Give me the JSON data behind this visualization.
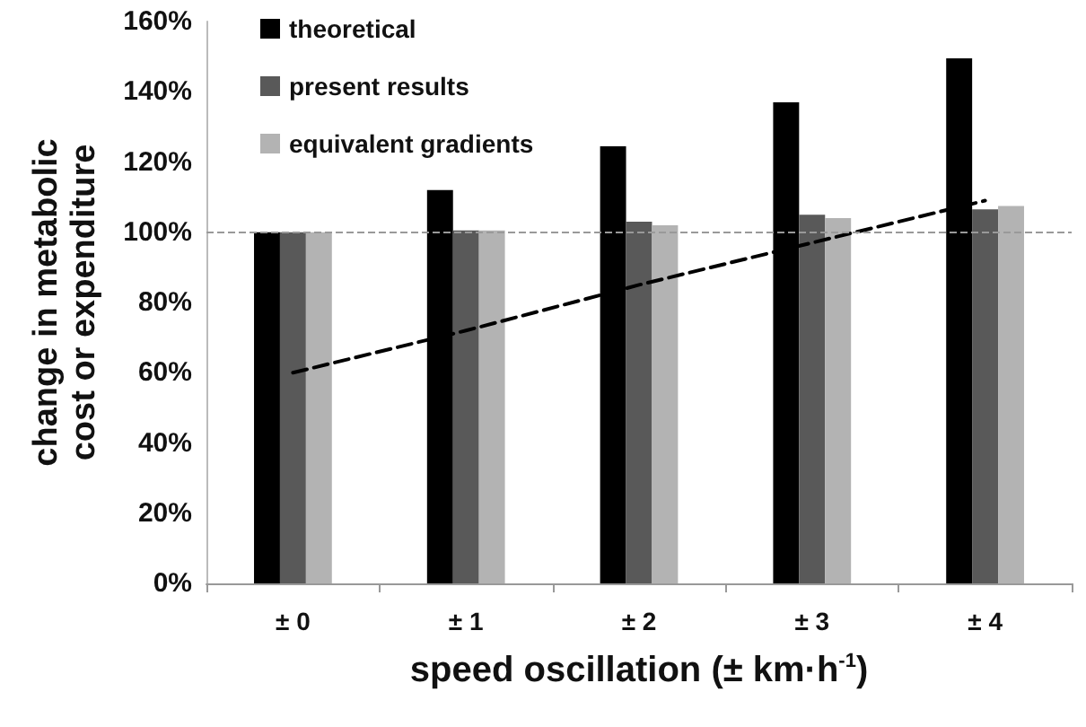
{
  "chart_data": {
    "type": "bar",
    "xlabel": "speed oscillation (± km·h$^{-1}$)",
    "ylabel": "change in metabolic\ncost or expenditure",
    "categories": [
      "± 0",
      "± 1",
      "± 2",
      "± 3",
      "± 4"
    ],
    "series": [
      {
        "name": "theoretical",
        "color": "#000000",
        "values": [
          100,
          112,
          124.5,
          137,
          149.5
        ]
      },
      {
        "name": "present results",
        "color": "#595959",
        "values": [
          100,
          100.5,
          103,
          105,
          106.5
        ]
      },
      {
        "name": "equivalent gradients",
        "color": "#b3b3b3",
        "values": [
          100,
          100.5,
          102,
          104,
          107.5
        ]
      },
      {
        "type": "line",
        "color": "#000000",
        "line_style": "dashed",
        "marker": "none",
        "values": [
          60,
          72,
          85,
          97,
          109
        ]
      }
    ],
    "ylim": [
      0,
      160
    ],
    "yticks": [
      {
        "value": 0,
        "label": "0%"
      },
      {
        "value": 20,
        "label": "20%"
      },
      {
        "value": 40,
        "label": "40%"
      },
      {
        "value": 60,
        "label": "60%"
      },
      {
        "value": 80,
        "label": "80%"
      },
      {
        "value": 100,
        "label": "100%"
      },
      {
        "value": 120,
        "label": "120%"
      },
      {
        "value": 140,
        "label": "140%"
      },
      {
        "value": 160,
        "label": "160%"
      }
    ],
    "ref_lines": [
      {
        "axis": "y",
        "value": 100,
        "color": "#999999",
        "line_style": "dashed"
      }
    ],
    "grid": false,
    "legend": "top left"
  }
}
